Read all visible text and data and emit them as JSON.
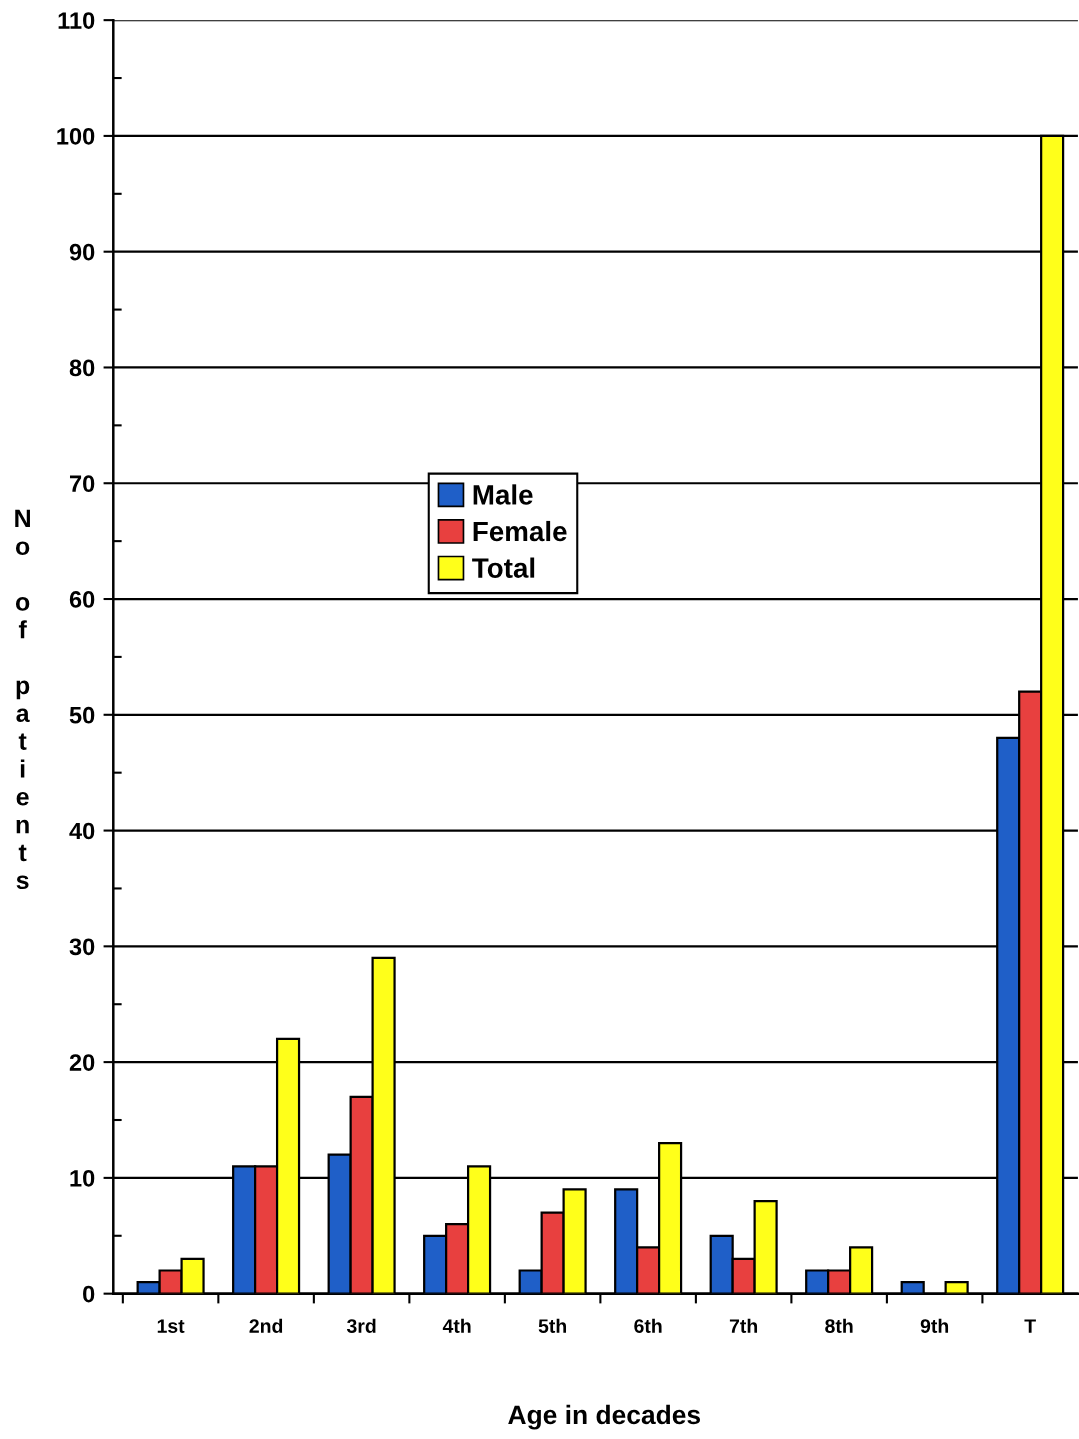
{
  "chart_data": {
    "type": "bar",
    "xlabel": "Age in decades",
    "ylabel": "No of patients",
    "categories": [
      "1st",
      "2nd",
      "3rd",
      "4th",
      "5th",
      "6th",
      "7th",
      "8th",
      "9th",
      "T"
    ],
    "series": [
      {
        "name": "Male",
        "color": "#1f5fc8",
        "values": [
          1,
          11,
          12,
          5,
          2,
          9,
          5,
          2,
          1,
          48
        ]
      },
      {
        "name": "Female",
        "color": "#e8403f",
        "values": [
          2,
          11,
          17,
          6,
          7,
          4,
          3,
          2,
          null,
          52
        ]
      },
      {
        "name": "Total",
        "color": "#ffff1a",
        "values": [
          3,
          22,
          29,
          11,
          9,
          13,
          8,
          4,
          1,
          100
        ]
      }
    ],
    "ylim": [
      0,
      110
    ],
    "yticks": [
      0,
      {
        "value": 5,
        "label": null
      },
      10,
      {
        "value": 15,
        "label": null
      },
      20,
      {
        "value": 25,
        "label": null
      },
      30,
      {
        "value": 35,
        "label": null
      },
      40,
      {
        "value": 45,
        "label": null
      },
      50,
      {
        "value": 55,
        "label": null
      },
      60,
      {
        "value": 65,
        "label": null
      },
      70,
      {
        "value": 75,
        "label": null
      },
      80,
      {
        "value": 85,
        "label": null
      },
      90,
      {
        "value": 95,
        "label": null
      },
      100,
      {
        "value": 105,
        "label": null
      },
      110
    ],
    "grid": "y",
    "legend": "center"
  }
}
